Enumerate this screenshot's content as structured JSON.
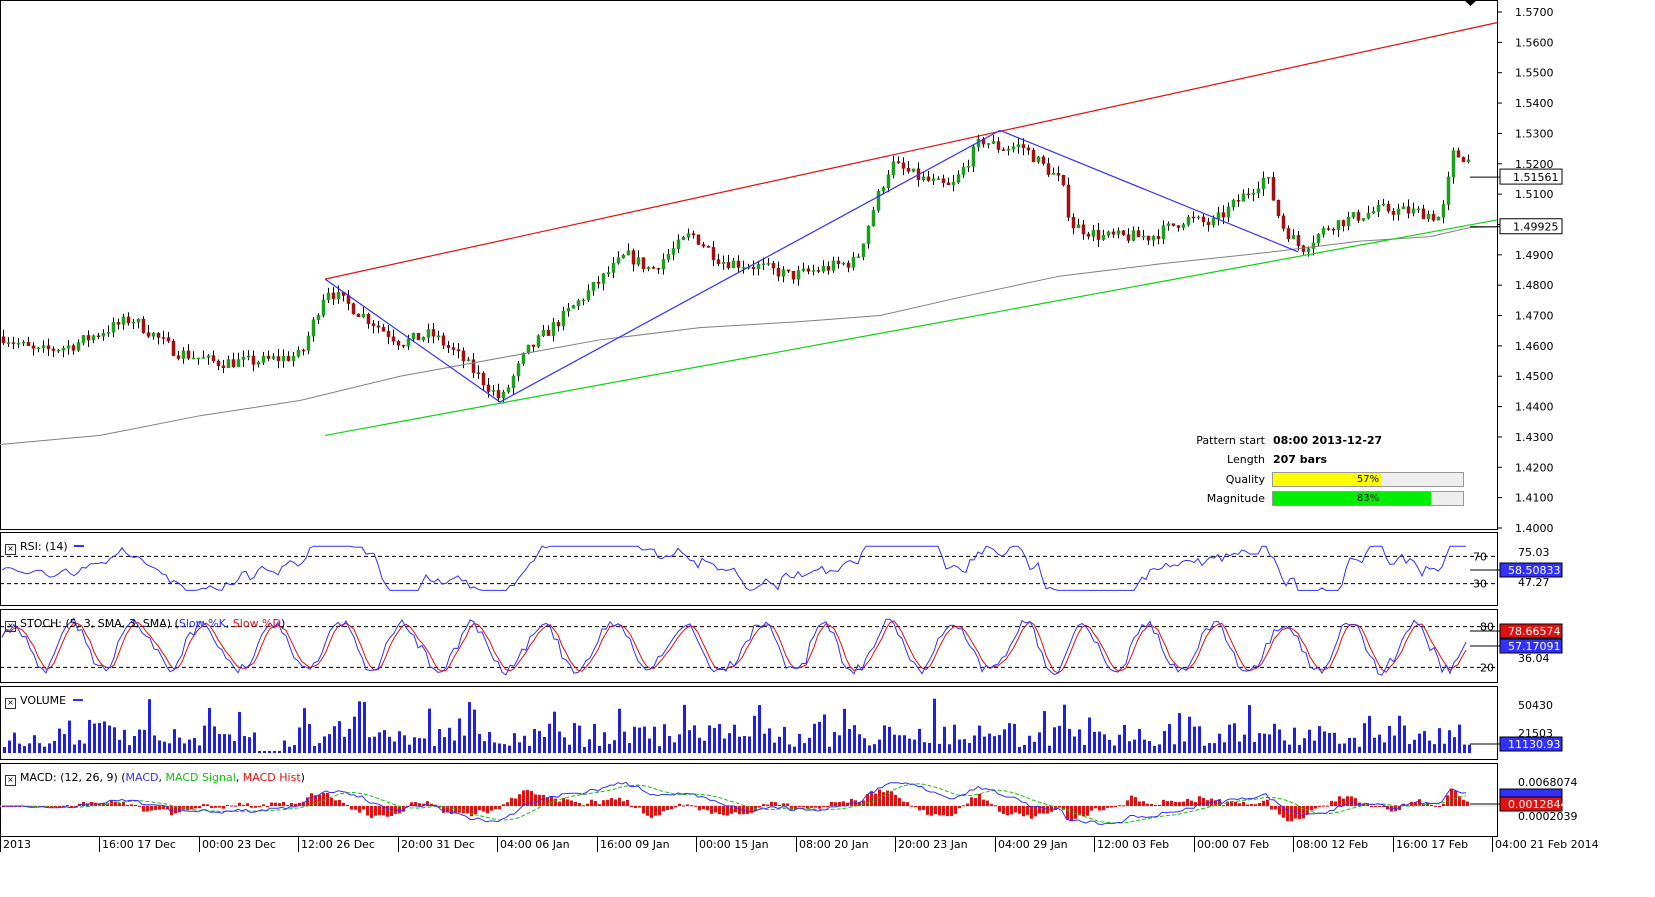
{
  "chart": {
    "price_axis": {
      "ticks": [
        "1.5700",
        "1.5600",
        "1.5500",
        "1.5400",
        "1.5300",
        "1.5200",
        "1.5100",
        "1.5000",
        "1.4900",
        "1.4800",
        "1.4700",
        "1.4600",
        "1.4500",
        "1.4400",
        "1.4300",
        "1.4200",
        "1.4100",
        "1.4000"
      ],
      "current_price": "1.51561",
      "ma_price": "1.49925",
      "range": [
        1.4,
        1.57
      ]
    },
    "time_axis": [
      "2013",
      "16:00 17 Dec",
      "00:00 23 Dec",
      "12:00 26 Dec",
      "20:00 31 Dec",
      "04:00 06 Jan",
      "16:00 09 Jan",
      "00:00 15 Jan",
      "08:00 20 Jan",
      "20:00 23 Jan",
      "04:00 29 Jan",
      "12:00 03 Feb",
      "00:00 07 Feb",
      "08:00 12 Feb",
      "16:00 17 Feb",
      "04:00 21 Feb 2014"
    ],
    "pattern": {
      "start_label": "Pattern start",
      "start_value": "08:00 2013-12-27",
      "length_label": "Length",
      "length_value": "207 bars",
      "quality_label": "Quality",
      "quality_value": "57%",
      "quality_fraction": 0.57,
      "magnitude_label": "Magnitude",
      "magnitude_value": "83%",
      "magnitude_fraction": 0.83
    },
    "colors": {
      "resistance": "#e01010",
      "support": "#10d010",
      "zigzag": "#3030ff",
      "moving_average": "#808080",
      "candle_up": "#1e9e1e",
      "candle_down": "#a01010",
      "quality_bar": "#ffff00",
      "magnitude_bar": "#00ee00"
    }
  },
  "rsi": {
    "title": "RSI: (14)",
    "levels": [
      "70",
      "30"
    ],
    "axis_labels": [
      "75.03",
      "47.27"
    ],
    "value": "58.50833"
  },
  "stoch": {
    "title_prefix": "STOCH: (5, 3, SMA, 3, SMA)",
    "k_label": "Slow %K",
    "d_label": "Slow %D",
    "levels": [
      "80",
      "20"
    ],
    "axis_labels": [
      "36.04"
    ],
    "k_value": "78.66574",
    "d_value": "57.17091"
  },
  "volume": {
    "title": "VOLUME",
    "axis_labels": [
      "50430",
      "21503"
    ],
    "value": "11130.93"
  },
  "macd": {
    "title_prefix": "MACD: (12, 26, 9)",
    "macd_label": "MACD",
    "signal_label": "MACD Signal",
    "hist_label": "MACD Hist",
    "axis_labels": [
      "0.0068074",
      "0.0002039"
    ],
    "value": "0.0012844"
  }
}
